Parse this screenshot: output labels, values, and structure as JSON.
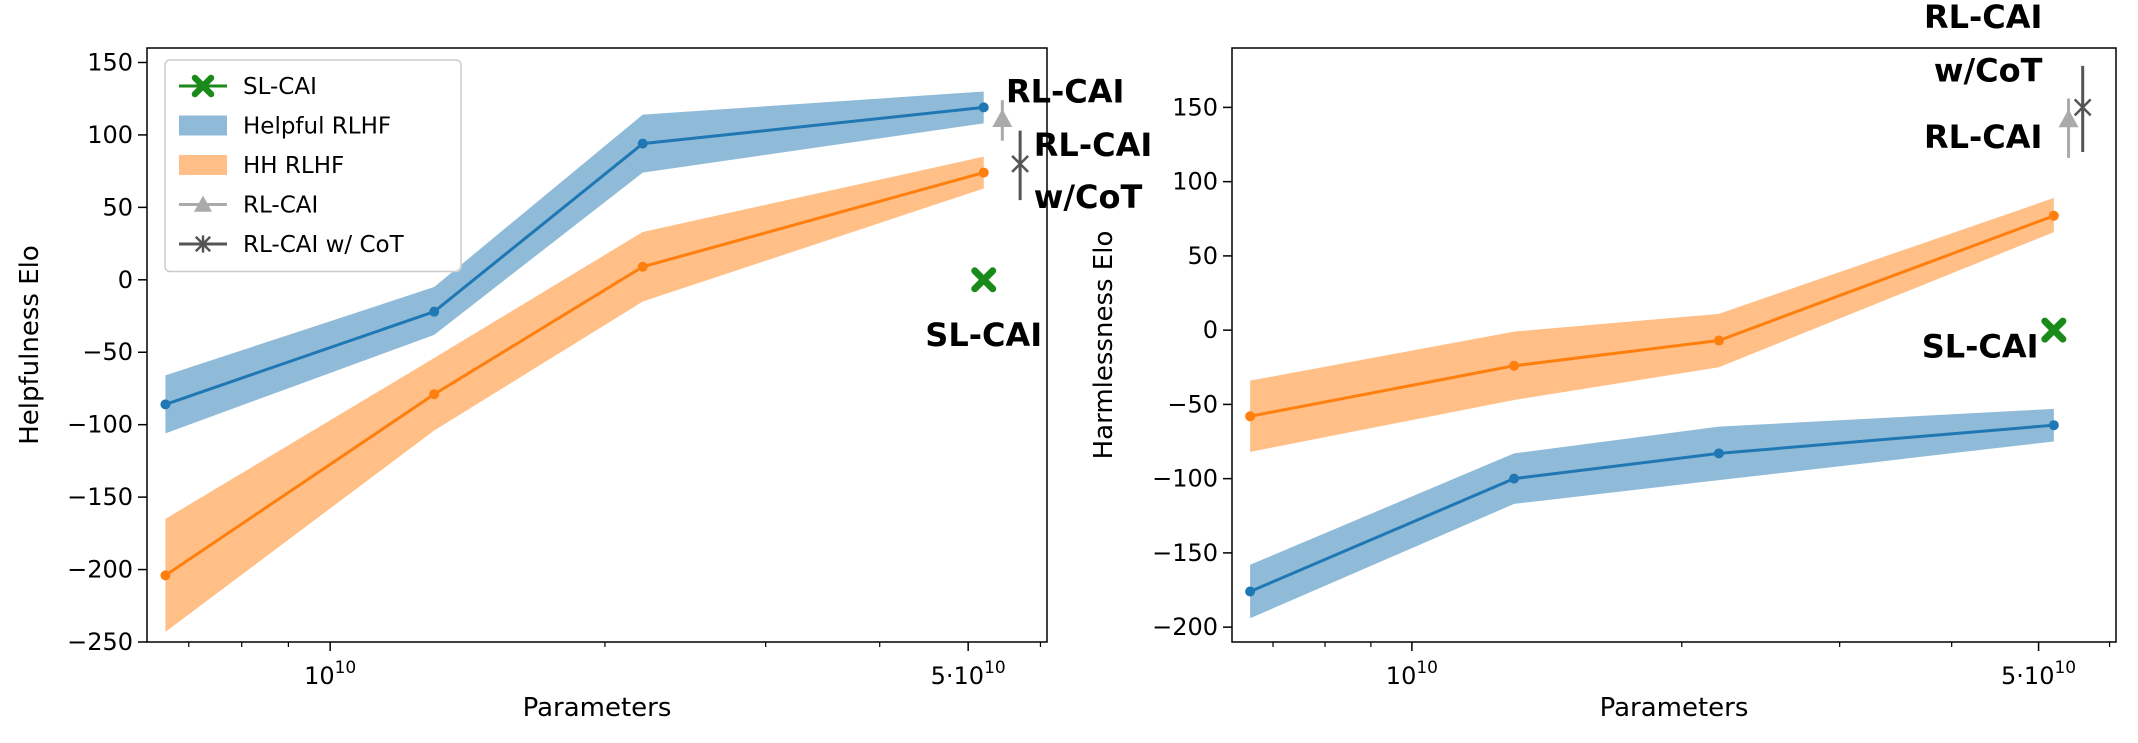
{
  "chart_data": [
    {
      "type": "line",
      "xlabel": "Parameters",
      "ylabel": "Helpfulness Elo",
      "xscale": "log",
      "xlim": [
        6300000000.0,
        61000000000.0
      ],
      "ylim": [
        -250,
        160
      ],
      "grid": false,
      "x_ticks": [
        {
          "value": 10000000000.0,
          "label": "10",
          "sup": "10"
        },
        {
          "value": 50000000000.0,
          "label": "5·10",
          "sup": "10"
        }
      ],
      "y_ticks": [
        -250,
        -200,
        -150,
        -100,
        -50,
        0,
        50,
        100,
        150
      ],
      "legend": {
        "placement": "top-left",
        "entries": [
          {
            "label": "SL-CAI",
            "color": "#1a8a1a",
            "marker": "x-thick"
          },
          {
            "label": "Helpful RLHF",
            "color": "#1f77b4",
            "marker": "patch"
          },
          {
            "label": "HH RLHF",
            "color": "#ff7f0e",
            "marker": "patch"
          },
          {
            "label": "RL-CAI",
            "color": "#aaaaaa",
            "marker": "triangle"
          },
          {
            "label": "RL-CAI w/ CoT",
            "color": "#555555",
            "marker": "star"
          }
        ]
      },
      "series": [
        {
          "name": "Helpful RLHF",
          "color": "#1f77b4",
          "x": [
            6600000000.0,
            13000000000.0,
            22000000000.0,
            52000000000.0
          ],
          "y": [
            -86,
            -22,
            94,
            119
          ],
          "lower": [
            -106,
            -38,
            74,
            108
          ],
          "upper": [
            -66,
            -5,
            114,
            130
          ]
        },
        {
          "name": "HH RLHF",
          "color": "#ff7f0e",
          "x": [
            6600000000.0,
            13000000000.0,
            22000000000.0,
            52000000000.0
          ],
          "y": [
            -204,
            -79,
            9,
            74
          ],
          "lower": [
            -243,
            -104,
            -15,
            63
          ],
          "upper": [
            -165,
            -54,
            33,
            85
          ]
        }
      ],
      "points": [
        {
          "name": "SL-CAI",
          "x": 52000000000.0,
          "y": 0,
          "color": "#1a8a1a",
          "marker": "x-thick"
        },
        {
          "name": "RL-CAI",
          "x": 54500000000.0,
          "y": 111,
          "yerr_low": 96,
          "yerr_high": 124,
          "color": "#aaaaaa",
          "marker": "triangle"
        },
        {
          "name": "RL-CAI w/ CoT",
          "x": 57000000000.0,
          "y": 80,
          "yerr_low": 55,
          "yerr_high": 103,
          "color": "#555555",
          "marker": "star"
        }
      ],
      "annotations": [
        {
          "text": "RL-CAI",
          "x": 55000000000.0,
          "y": 130,
          "align": "start"
        },
        {
          "text": "RL-CAI",
          "x": 59000000000.0,
          "y": 93,
          "align": "start"
        },
        {
          "text": "w/CoT",
          "x": 59000000000.0,
          "y": 57,
          "align": "start"
        },
        {
          "text": "SL-CAI",
          "x": 52000000000.0,
          "y": -38,
          "align": "middle"
        }
      ]
    },
    {
      "type": "line",
      "xlabel": "Parameters",
      "ylabel": "Harmlessness Elo",
      "xscale": "log",
      "xlim": [
        6300000000.0,
        61000000000.0
      ],
      "ylim": [
        -210,
        190
      ],
      "grid": false,
      "x_ticks": [
        {
          "value": 10000000000.0,
          "label": "10",
          "sup": "10"
        },
        {
          "value": 50000000000.0,
          "label": "5·10",
          "sup": "10"
        }
      ],
      "y_ticks": [
        -200,
        -150,
        -100,
        -50,
        0,
        50,
        100,
        150
      ],
      "series": [
        {
          "name": "Helpful RLHF",
          "color": "#1f77b4",
          "x": [
            6600000000.0,
            13000000000.0,
            22000000000.0,
            52000000000.0
          ],
          "y": [
            -176,
            -100,
            -83,
            -64
          ],
          "lower": [
            -194,
            -117,
            -101,
            -75
          ],
          "upper": [
            -158,
            -83,
            -65,
            -53
          ]
        },
        {
          "name": "HH RLHF",
          "color": "#ff7f0e",
          "x": [
            6600000000.0,
            13000000000.0,
            22000000000.0,
            52000000000.0
          ],
          "y": [
            -58,
            -24,
            -7,
            77
          ],
          "lower": [
            -82,
            -47,
            -25,
            66
          ],
          "upper": [
            -34,
            -1,
            11,
            89
          ]
        }
      ],
      "points": [
        {
          "name": "SL-CAI",
          "x": 52000000000.0,
          "y": 0,
          "color": "#1a8a1a",
          "marker": "x-thick"
        },
        {
          "name": "RL-CAI",
          "x": 54000000000.0,
          "y": 142,
          "yerr_low": 116,
          "yerr_high": 156,
          "color": "#aaaaaa",
          "marker": "triangle"
        },
        {
          "name": "RL-CAI w/ CoT",
          "x": 56000000000.0,
          "y": 150,
          "yerr_low": 120,
          "yerr_high": 178,
          "color": "#555555",
          "marker": "star"
        }
      ],
      "annotations": [
        {
          "text": "RL-CAI",
          "x": 50500000000.0,
          "y": 211,
          "align": "end"
        },
        {
          "text": "w/CoT",
          "x": 50500000000.0,
          "y": 175,
          "align": "end"
        },
        {
          "text": "RL-CAI",
          "x": 50500000000.0,
          "y": 130,
          "align": "end"
        },
        {
          "text": "SL-CAI",
          "x": 50000000000.0,
          "y": -11,
          "align": "end"
        }
      ]
    }
  ]
}
